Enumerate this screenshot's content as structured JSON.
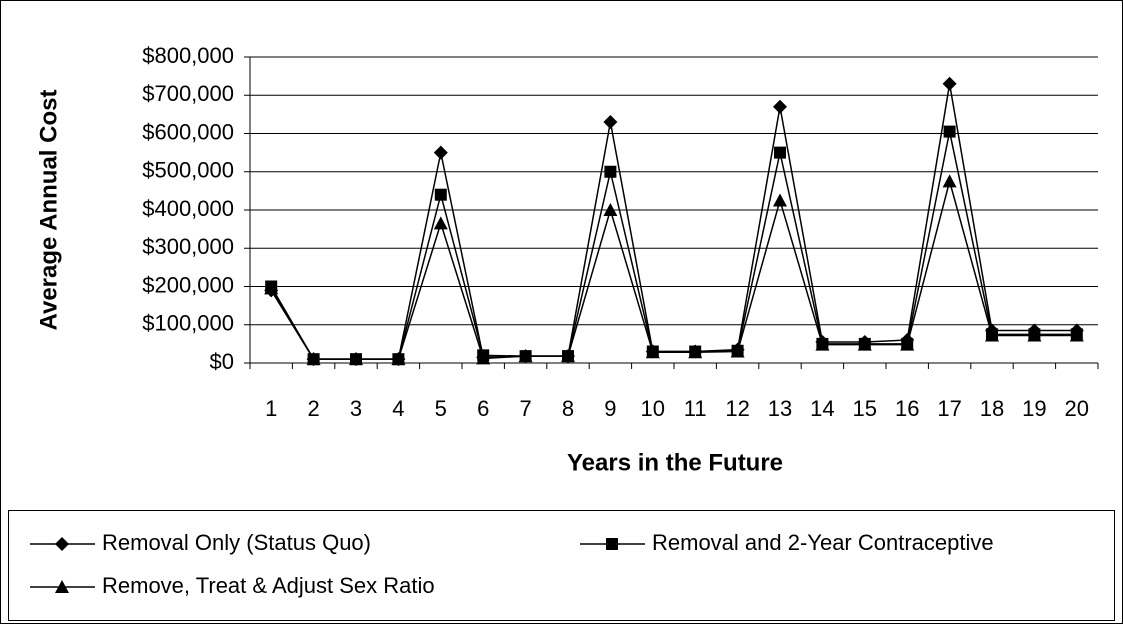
{
  "chart_data": {
    "type": "line",
    "x_label": "Years in the Future",
    "y_label": "Average Annual Cost",
    "categories": [
      "1",
      "2",
      "3",
      "4",
      "5",
      "6",
      "7",
      "8",
      "9",
      "10",
      "11",
      "12",
      "13",
      "14",
      "15",
      "16",
      "17",
      "18",
      "19",
      "20"
    ],
    "series": [
      {
        "name": "Removal Only (Status Quo)",
        "color": "#000000",
        "marker": "diamond",
        "values": [
          190000,
          10000,
          10000,
          10000,
          550000,
          15000,
          18000,
          18000,
          630000,
          30000,
          30000,
          35000,
          670000,
          55000,
          55000,
          60000,
          730000,
          85000,
          85000,
          85000
        ]
      },
      {
        "name": "Removal and 2-Year Contraceptive",
        "color": "#000000",
        "marker": "square",
        "values": [
          200000,
          10000,
          10000,
          10000,
          440000,
          20000,
          18000,
          18000,
          500000,
          30000,
          30000,
          32000,
          550000,
          50000,
          50000,
          50000,
          605000,
          75000,
          75000,
          75000
        ]
      },
      {
        "name": "Remove, Treat & Adjust Sex Ratio",
        "color": "#000000",
        "marker": "triangle",
        "values": [
          195000,
          10000,
          10000,
          10000,
          365000,
          12000,
          18000,
          18000,
          400000,
          28000,
          28000,
          30000,
          425000,
          48000,
          48000,
          48000,
          475000,
          72000,
          72000,
          72000
        ]
      }
    ],
    "ylim": [
      0,
      800000
    ],
    "yticks": [
      {
        "value": 0,
        "label": "$0"
      },
      {
        "value": 100000,
        "label": "$100,000"
      },
      {
        "value": 200000,
        "label": "$200,000"
      },
      {
        "value": 300000,
        "label": "$300,000"
      },
      {
        "value": 400000,
        "label": "$400,000"
      },
      {
        "value": 500000,
        "label": "$500,000"
      },
      {
        "value": 600000,
        "label": "$600,000"
      },
      {
        "value": 700000,
        "label": "$700,000"
      },
      {
        "value": 800000,
        "label": "$800,000"
      }
    ],
    "grid": true,
    "legend": "bottom"
  }
}
